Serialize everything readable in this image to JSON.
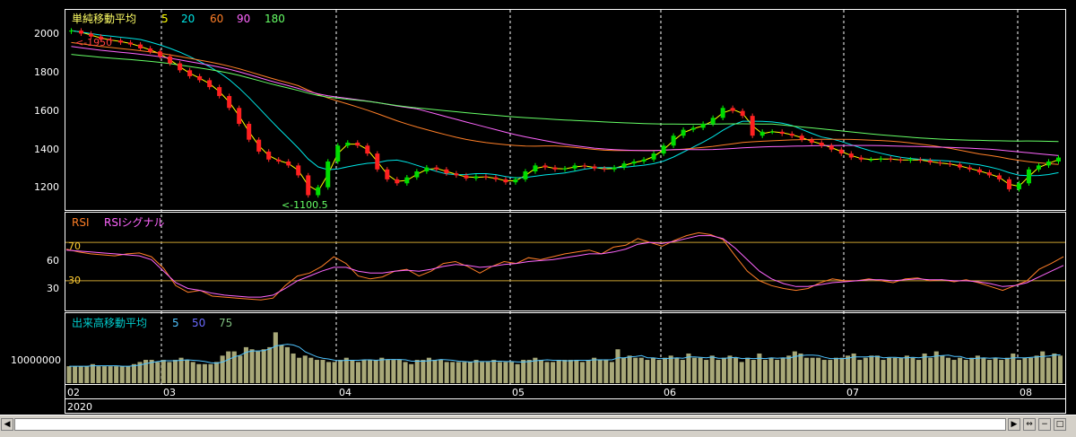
{
  "panels": {
    "price": {
      "title": "単純移動平均",
      "ma_labels": [
        {
          "label": "5",
          "color": "#ffff00"
        },
        {
          "label": "20",
          "color": "#00e5e5"
        },
        {
          "label": "60",
          "color": "#ff7f27"
        },
        {
          "label": "90",
          "color": "#ff66ff"
        },
        {
          "label": "180",
          "color": "#66ff66"
        }
      ],
      "y_ticks": [
        "2000",
        "1800",
        "1600",
        "1400",
        "1200"
      ],
      "high_annotation": "<-1950",
      "low_annotation": "<-1100.5"
    },
    "rsi": {
      "title": "RSI",
      "signal_title": "RSIシグナル",
      "level_high": "70",
      "level_low": "30",
      "y_ticks": [
        "60",
        "30"
      ]
    },
    "volume": {
      "title": "出来高移動平均",
      "ma_labels": [
        {
          "label": "5",
          "color": "#4fc3ff"
        },
        {
          "label": "50",
          "color": "#6a6aff"
        },
        {
          "label": "75",
          "color": "#7fbf7f"
        }
      ],
      "y_tick": "10000000"
    },
    "x_axis": {
      "months": [
        "02",
        "03",
        "04",
        "05",
        "06",
        "07",
        "08"
      ],
      "year": "2020"
    }
  },
  "chart_data": [
    {
      "type": "candlestick",
      "title": "単純移動平均",
      "ylim": [
        1050,
        2050
      ],
      "y_ticks": [
        1200,
        1400,
        1600,
        1800,
        2000
      ],
      "grid": true,
      "close_approx": [
        1950,
        1935,
        1920,
        1905,
        1900,
        1890,
        1880,
        1860,
        1845,
        1820,
        1785,
        1750,
        1720,
        1700,
        1665,
        1620,
        1560,
        1480,
        1400,
        1340,
        1300,
        1290,
        1270,
        1220,
        1120,
        1160,
        1290,
        1370,
        1385,
        1370,
        1330,
        1250,
        1200,
        1180,
        1210,
        1240,
        1260,
        1250,
        1230,
        1220,
        1205,
        1215,
        1210,
        1200,
        1185,
        1200,
        1240,
        1270,
        1260,
        1250,
        1255,
        1270,
        1265,
        1255,
        1250,
        1260,
        1280,
        1290,
        1300,
        1330,
        1370,
        1420,
        1450,
        1460,
        1480,
        1510,
        1560,
        1545,
        1520,
        1420,
        1440,
        1440,
        1430,
        1420,
        1400,
        1385,
        1370,
        1350,
        1330,
        1310,
        1300,
        1300,
        1305,
        1300,
        1295,
        1300,
        1295,
        1285,
        1280,
        1275,
        1260,
        1250,
        1235,
        1220,
        1200,
        1150,
        1180,
        1250,
        1270,
        1290,
        1310
      ],
      "annotations": [
        "<-1950",
        "<-1100.5"
      ]
    },
    {
      "type": "line",
      "title": "RSI",
      "series": [
        {
          "name": "RSI",
          "values": [
            63,
            60,
            58,
            57,
            56,
            58,
            59,
            55,
            43,
            25,
            18,
            20,
            14,
            13,
            12,
            11,
            10,
            12,
            25,
            35,
            38,
            45,
            55,
            48,
            35,
            32,
            34,
            40,
            42,
            35,
            40,
            48,
            50,
            45,
            38,
            45,
            50,
            48,
            54,
            52,
            55,
            58,
            60,
            62,
            58,
            65,
            67,
            74,
            70,
            66,
            72,
            77,
            80,
            78,
            73,
            56,
            40,
            30,
            25,
            22,
            20,
            22,
            28,
            32,
            30,
            30,
            32,
            30,
            28,
            32,
            33,
            30,
            31,
            29,
            31,
            28,
            24,
            20,
            25,
            30,
            42,
            48,
            55
          ]
        },
        {
          "name": "RSIシグナル",
          "values": [
            62,
            61,
            60,
            59,
            58,
            57,
            56,
            52,
            40,
            28,
            22,
            20,
            17,
            15,
            14,
            13,
            13,
            15,
            22,
            30,
            35,
            40,
            44,
            44,
            40,
            38,
            38,
            40,
            41,
            40,
            42,
            45,
            47,
            46,
            44,
            45,
            47,
            48,
            50,
            51,
            52,
            54,
            56,
            58,
            58,
            60,
            63,
            68,
            70,
            69,
            71,
            74,
            77,
            77,
            74,
            64,
            52,
            40,
            32,
            27,
            24,
            24,
            26,
            28,
            29,
            30,
            31,
            31,
            30,
            31,
            32,
            31,
            31,
            30,
            30,
            29,
            27,
            24,
            25,
            28,
            34,
            40,
            46
          ]
        }
      ],
      "ylim": [
        0,
        100
      ],
      "levels": [
        70,
        30
      ],
      "grid": true
    },
    {
      "type": "bar",
      "title": "出来高移動平均",
      "ylim": [
        0,
        25000000
      ],
      "y_ticks": [
        10000000
      ],
      "values_approx": [
        8000000.0,
        8000000.0,
        8000000.0,
        8000000.0,
        9000000.0,
        8000000.0,
        8000000.0,
        8000000.0,
        8000000.0,
        8000000.0,
        8000000.0,
        9000000.0,
        10000000.0,
        11000000.0,
        11000000.0,
        10000000.0,
        11000000.0,
        10000000.0,
        11000000.0,
        12000000.0,
        11000000.0,
        10000000.0,
        9000000.0,
        9000000.0,
        9000000.0,
        10000000.0,
        13000000.0,
        15000000.0,
        15000000.0,
        13000000.0,
        17000000.0,
        16000000.0,
        15000000.0,
        16000000.0,
        17000000.0,
        24000000.0,
        18000000.0,
        17000000.0,
        14000000.0,
        12000000.0,
        13000000.0,
        12000000.0,
        11000000.0,
        11000000.0,
        10000000.0,
        10000000.0,
        11000000.0,
        12000000.0,
        11000000.0,
        10000000.0,
        11000000.0,
        11000000.0,
        11000000.0,
        12000000.0,
        11000000.0,
        11000000.0,
        11000000.0,
        10000000.0,
        9000000.0,
        11000000.0,
        11000000.0,
        12000000.0,
        11000000.0,
        11000000.0,
        10000000.0,
        10000000.0,
        10000000.0,
        10000000.0,
        10000000.0,
        11000000.0,
        10000000.0,
        10000000.0,
        11000000.0,
        10000000.0,
        10000000.0,
        10000000.0,
        9000000.0,
        11000000.0,
        11000000.0,
        12000000.0,
        11000000.0,
        10000000.0,
        10000000.0,
        11000000.0,
        11000000.0,
        11000000.0,
        11000000.0,
        10000000.0,
        11000000.0,
        12000000.0,
        11000000.0,
        11000000.0,
        10000000.0,
        16000000.0,
        12000000.0,
        13000000.0,
        12000000.0,
        12000000.0,
        11000000.0,
        12000000.0,
        11000000.0,
        12000000.0,
        13000000.0,
        12000000.0,
        11000000.0,
        14000000.0,
        12000000.0,
        12000000.0,
        11000000.0,
        13000000.0,
        11000000.0,
        12000000.0,
        13000000.0,
        12000000.0,
        10000000.0,
        12000000.0,
        11000000.0,
        14000000.0,
        11000000.0,
        12000000.0,
        11000000.0,
        12000000.0,
        13000000.0,
        15000000.0,
        14000000.0,
        12000000.0,
        12000000.0,
        12000000.0,
        11000000.0,
        11000000.0,
        12000000.0,
        12000000.0,
        13000000.0,
        14000000.0,
        11000000.0,
        12000000.0,
        13000000.0,
        13000000.0,
        11000000.0,
        12000000.0,
        12000000.0,
        12000000.0,
        13000000.0,
        12000000.0,
        11000000.0,
        14000000.0,
        12000000.0,
        15000000.0,
        13000000.0,
        12000000.0,
        11000000.0,
        12000000.0,
        11000000.0,
        12000000.0,
        13000000.0,
        12000000.0,
        11000000.0,
        12000000.0,
        11000000.0,
        12000000.0,
        14000000.0,
        11000000.0,
        12000000.0,
        12000000.0,
        13000000.0,
        15000000.0,
        12000000.0,
        14000000.0,
        13000000.0
      ],
      "grid": true
    }
  ]
}
